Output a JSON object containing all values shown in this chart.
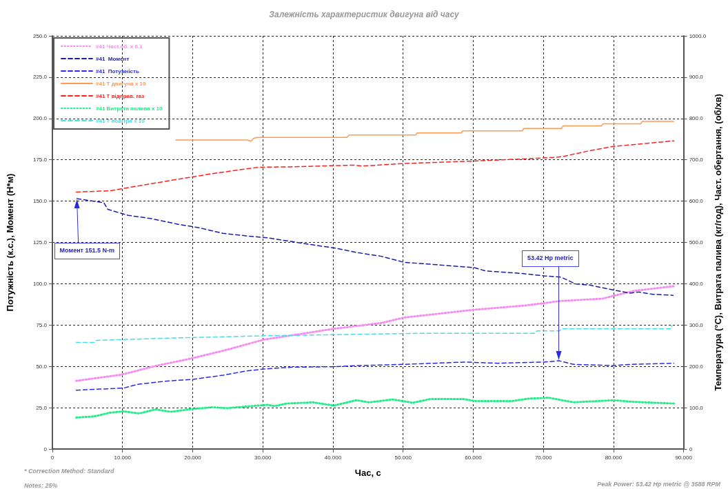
{
  "chart_data": {
    "type": "line",
    "title": "Залежність характеристик двигуна від часу",
    "xlabel": "Час, с",
    "ylabel": "Потужність (к.с.), Момент (Н*м)",
    "y2label": "Температура (°С), Витрата палива (кг/год), Част. обертання, (об/хв)",
    "xlim": [
      0,
      90
    ],
    "xticks": [
      0,
      {
        "value": 10,
        "label": "10.000"
      },
      {
        "value": 20,
        "label": "20.000"
      },
      {
        "value": 30,
        "label": "30.000"
      },
      {
        "value": 40,
        "label": "40.000"
      },
      {
        "value": 50,
        "label": "50.000"
      },
      {
        "value": 60,
        "label": "60.000"
      },
      {
        "value": 70,
        "label": "70.000"
      },
      {
        "value": 80,
        "label": "80.000"
      },
      {
        "value": 90,
        "label": "90.000"
      }
    ],
    "ylim": [
      0,
      250
    ],
    "yticks": [
      0,
      {
        "value": 25,
        "label": "25.0"
      },
      {
        "value": 50,
        "label": "50.0"
      },
      {
        "value": 75,
        "label": "75.0"
      },
      {
        "value": 100,
        "label": "100.0"
      },
      {
        "value": 125,
        "label": "125.0"
      },
      {
        "value": 150,
        "label": "150.0"
      },
      {
        "value": 175,
        "label": "175.0"
      },
      {
        "value": 200,
        "label": "200.0"
      },
      {
        "value": 225,
        "label": "225.0"
      },
      {
        "value": 250,
        "label": "250.0"
      }
    ],
    "y2lim": [
      0,
      1000
    ],
    "y2ticks": [
      0,
      {
        "value": 100,
        "label": "100.0"
      },
      {
        "value": 200,
        "label": "200.0"
      },
      {
        "value": 300,
        "label": "300.0"
      },
      {
        "value": 400,
        "label": "400.0"
      },
      {
        "value": 500,
        "label": "500.0"
      },
      {
        "value": 600,
        "label": "600.0"
      },
      {
        "value": 700,
        "label": "700.0"
      },
      {
        "value": 800,
        "label": "800.0"
      },
      {
        "value": 900,
        "label": "900.0"
      },
      {
        "value": 1000,
        "label": "1000.0"
      }
    ],
    "grid": true,
    "legend": "top left",
    "marker": "none",
    "series": [
      {
        "name": "#41 Част.об. x 0.1",
        "color": "#f58cf0",
        "axis": "y2",
        "line_style": "dotted",
        "x": [
          3.4,
          9.9,
          14.7,
          19.5,
          24.4,
          30.2,
          35.6,
          40.1,
          46.9,
          50.1,
          60.1,
          67.2,
          70.1,
          72.2,
          78.5,
          79.8,
          83,
          88.6
        ],
        "values": [
          165,
          180,
          201,
          218,
          238,
          265,
          279,
          291,
          305,
          318,
          337,
          347,
          353,
          358,
          364,
          370,
          383,
          394
        ]
      },
      {
        "name": "#41  Момент",
        "color": "#1c1ca8",
        "line_style": "dashed",
        "x": [
          3.5,
          7.35,
          7.9,
          10.8,
          14,
          17.9,
          20.8,
          24.3,
          27.6,
          30.8,
          34,
          37.2,
          40.4,
          43.7,
          46.9,
          50.1,
          53.9,
          60.1,
          61.7,
          66.9,
          70.1,
          72.5,
          74.6,
          76.6,
          79.8,
          82.4,
          83.6,
          85.6,
          88.5
        ],
        "values": [
          151.5,
          149,
          145,
          141.4,
          139.5,
          136,
          134,
          130.5,
          129,
          127.7,
          125.6,
          123.5,
          121.5,
          118.7,
          116.6,
          113,
          111.8,
          109.8,
          107.8,
          106.2,
          104.8,
          104,
          99.9,
          99.2,
          96.4,
          94.3,
          95,
          93.6,
          93
        ]
      },
      {
        "name": "#41  Потужність",
        "color": "#2828f0",
        "line_style": "dashed",
        "x": [
          3.4,
          10.2,
          12.1,
          16,
          20.1,
          24.4,
          27.6,
          30.2,
          34,
          40.1,
          43.7,
          50.1,
          58.8,
          63.6,
          70.1,
          72.2,
          74.3,
          80,
          82.4,
          88.6
        ],
        "values": [
          35.6,
          36.9,
          39.1,
          41,
          42.2,
          44.7,
          47.2,
          48.4,
          49.5,
          49.8,
          50.5,
          51.2,
          52.6,
          51.9,
          52.6,
          53.4,
          51.2,
          50.5,
          51.2,
          51.9
        ]
      },
      {
        "name": "#41 Т двигуна x 10",
        "color": "#ff9955",
        "axis": "y2",
        "line_style": "solid",
        "x": [
          17.6,
          27.8,
          28.3,
          28.7,
          29.2,
          42,
          42.3,
          51.8,
          52,
          58.3,
          58.5,
          67,
          67.2,
          72.6,
          72.8,
          78.3,
          78.5,
          83.9,
          84.1,
          88.6
        ],
        "values": [
          748,
          748,
          745,
          752,
          754,
          754,
          760,
          760,
          765,
          765,
          770,
          770,
          776,
          776,
          782,
          782,
          787,
          787,
          793,
          793
        ]
      },
      {
        "name": "#41 Т відправ. газ",
        "color": "#ff2020",
        "axis": "y2",
        "line_style": "dashed",
        "x": [
          3.4,
          8.2,
          13,
          17.9,
          23,
          27.6,
          29.5,
          34,
          40.4,
          43,
          44.3,
          50.1,
          60.1,
          66.9,
          71.7,
          72.8,
          76.6,
          79.8,
          83,
          88.6
        ],
        "values": [
          622,
          625,
          639,
          653,
          667,
          678,
          682,
          683,
          686,
          687,
          685,
          691,
          697,
          702,
          706,
          708,
          722,
          732,
          737,
          746
        ]
      },
      {
        "name": "#41 Витрата палива x 10",
        "color": "#22ee88",
        "axis": "y2",
        "line_style": "dotted",
        "x": [
          3.4,
          6,
          8.2,
          10.2,
          12.4,
          14.7,
          16.9,
          19.5,
          22.7,
          24.9,
          30.7,
          31.7,
          33.4,
          37.2,
          40.1,
          43.3,
          45.2,
          48.5,
          51.4,
          53.9,
          58.5,
          60.4,
          65.5,
          67.9,
          70.8,
          74.3,
          80,
          83,
          88.6
        ],
        "values": [
          76,
          79,
          88,
          91,
          86,
          96,
          90,
          96,
          101,
          99,
          107,
          104,
          110,
          113,
          105,
          118,
          113,
          120,
          112,
          121,
          121,
          116,
          116,
          122,
          124,
          113,
          118,
          114,
          110
        ]
      },
      {
        "name": "#41 Т повітря x 10",
        "color": "#44dde8",
        "axis": "y2",
        "line_style": "dashed",
        "x": [
          3.4,
          6,
          6.3,
          17.9,
          30.2,
          52.4,
          68.8,
          69.1,
          72.3,
          72.7,
          88.2,
          88.3
        ],
        "values": [
          258,
          258,
          263,
          269,
          274,
          280,
          280,
          286,
          286,
          291,
          291,
          299
        ]
      }
    ],
    "annotations": [
      {
        "text": "Момент 151.5 N-m",
        "x": 3.5,
        "y": 151.5
      },
      {
        "text": "53.42 Hp metric",
        "x": 72.2,
        "y": 53.42
      },
      "* Correction Method: Standard",
      "Notes: 25%",
      "Peak Power: 53.42 Hp metric @ 3588 RPM"
    ]
  }
}
